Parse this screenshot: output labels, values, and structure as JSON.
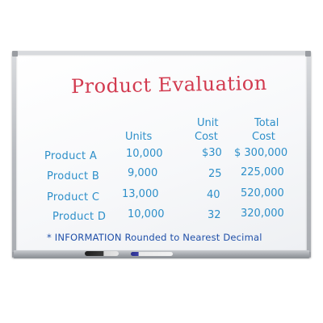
{
  "board": {
    "title": "Product Evaluation",
    "headers": {
      "units": "Units",
      "unit_cost_line1": "Unit",
      "unit_cost_line2": "Cost",
      "total_cost_line1": "Total",
      "total_cost_line2": "Cost"
    },
    "rows": [
      {
        "product": "Product A",
        "units": "10,000",
        "unit_cost": "$30",
        "total_cost": "$ 300,000"
      },
      {
        "product": "Product B",
        "units": "9,000",
        "unit_cost": "25",
        "total_cost": "225,000"
      },
      {
        "product": "Product C",
        "units": "13,000",
        "unit_cost": "40",
        "total_cost": "520,000"
      },
      {
        "product": "Product D",
        "units": "10,000",
        "unit_cost": "32",
        "total_cost": "320,000"
      }
    ],
    "footnote": "* INFORMATION Rounded to Nearest Decimal"
  },
  "colors": {
    "title_ink": "#d23a4f",
    "table_ink": "#2d8fc9",
    "note_ink": "#1f4fa8"
  }
}
